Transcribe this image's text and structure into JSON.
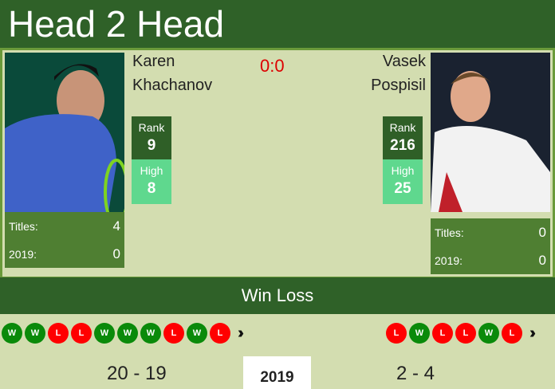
{
  "header": {
    "title": "Head 2 Head"
  },
  "score": "0:0",
  "player1": {
    "first": "Karen",
    "last": "Khachanov",
    "rank_label": "Rank",
    "rank": "9",
    "high_label": "High",
    "high": "8",
    "titles_label": "Titles:",
    "titles": "4",
    "year_label": "2019:",
    "year_titles": "0",
    "form": [
      "W",
      "W",
      "L",
      "L",
      "W",
      "W",
      "W",
      "L",
      "W",
      "L"
    ],
    "record": "20 - 19"
  },
  "player2": {
    "first": "Vasek",
    "last": "Pospisil",
    "rank_label": "Rank",
    "rank": "216",
    "high_label": "High",
    "high": "25",
    "titles_label": "Titles:",
    "titles": "0",
    "year_label": "2019:",
    "year_titles": "0",
    "form": [
      "L",
      "W",
      "L",
      "L",
      "W",
      "L"
    ],
    "record": "2 - 4"
  },
  "winloss": {
    "title": "Win Loss",
    "year_tab": "2019"
  },
  "colors": {
    "header": "#2f6128",
    "panel": "#d3ddb0",
    "win": "#0a8a0a",
    "loss": "#ff0000",
    "rank": "#2f5f27",
    "high": "#5fd88e"
  }
}
